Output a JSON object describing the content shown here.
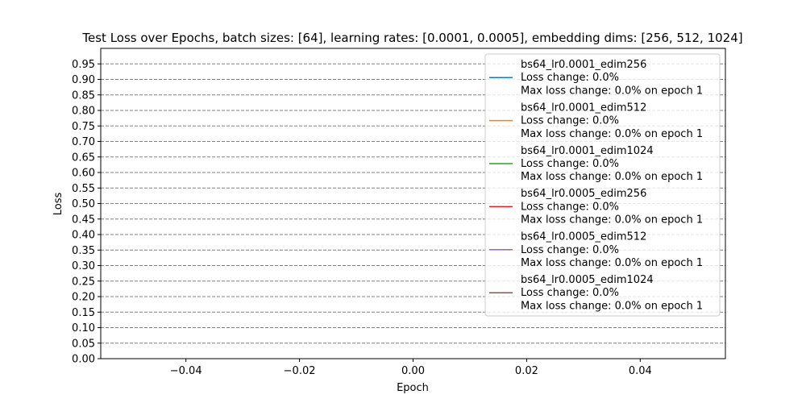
{
  "chart_data": {
    "type": "line",
    "title": "Test Loss over Epochs, batch sizes: [64], learning rates: [0.0001, 0.0005], embedding dims: [256, 512, 1024]",
    "xlabel": "Epoch",
    "ylabel": "Loss",
    "xlim": [
      -0.055,
      0.055
    ],
    "ylim": [
      0.0,
      1.0
    ],
    "x_ticks": [
      -0.04,
      -0.02,
      0.0,
      0.02,
      0.04
    ],
    "x_tick_labels": [
      "−0.04",
      "−0.02",
      "0.00",
      "0.02",
      "0.04"
    ],
    "y_ticks": [
      0.0,
      0.05,
      0.1,
      0.15,
      0.2,
      0.25,
      0.3,
      0.35,
      0.4,
      0.45,
      0.5,
      0.55,
      0.6,
      0.65,
      0.7,
      0.75,
      0.8,
      0.85,
      0.9,
      0.95
    ],
    "y_tick_labels": [
      "0.00",
      "0.05",
      "0.10",
      "0.15",
      "0.20",
      "0.25",
      "0.30",
      "0.35",
      "0.40",
      "0.45",
      "0.50",
      "0.55",
      "0.60",
      "0.65",
      "0.70",
      "0.75",
      "0.80",
      "0.85",
      "0.90",
      "0.95"
    ],
    "grid": "horizontal dashed",
    "legend_position": "top-right",
    "series": [
      {
        "name": "bs64_lr0.0001_edim256",
        "color": "#1f77b4",
        "x": [],
        "y": [],
        "legend_lines": [
          "bs64_lr0.0001_edim256",
          "Loss change: 0.0%",
          "Max loss change: 0.0% on epoch 1"
        ]
      },
      {
        "name": "bs64_lr0.0001_edim512",
        "color": "#ff7f0e",
        "x": [],
        "y": [],
        "legend_lines": [
          "bs64_lr0.0001_edim512",
          "Loss change: 0.0%",
          "Max loss change: 0.0% on epoch 1"
        ]
      },
      {
        "name": "bs64_lr0.0001_edim1024",
        "color": "#2ca02c",
        "x": [],
        "y": [],
        "legend_lines": [
          "bs64_lr0.0001_edim1024",
          "Loss change: 0.0%",
          "Max loss change: 0.0% on epoch 1"
        ]
      },
      {
        "name": "bs64_lr0.0005_edim256",
        "color": "#d62728",
        "x": [],
        "y": [],
        "legend_lines": [
          "bs64_lr0.0005_edim256",
          "Loss change: 0.0%",
          "Max loss change: 0.0% on epoch 1"
        ]
      },
      {
        "name": "bs64_lr0.0005_edim512",
        "color": "#9467bd",
        "x": [],
        "y": [],
        "legend_lines": [
          "bs64_lr0.0005_edim512",
          "Loss change: 0.0%",
          "Max loss change: 0.0% on epoch 1"
        ]
      },
      {
        "name": "bs64_lr0.0005_edim1024",
        "color": "#8c564b",
        "x": [],
        "y": [],
        "legend_lines": [
          "bs64_lr0.0005_edim1024",
          "Loss change: 0.0%",
          "Max loss change: 0.0% on epoch 1"
        ]
      }
    ]
  }
}
